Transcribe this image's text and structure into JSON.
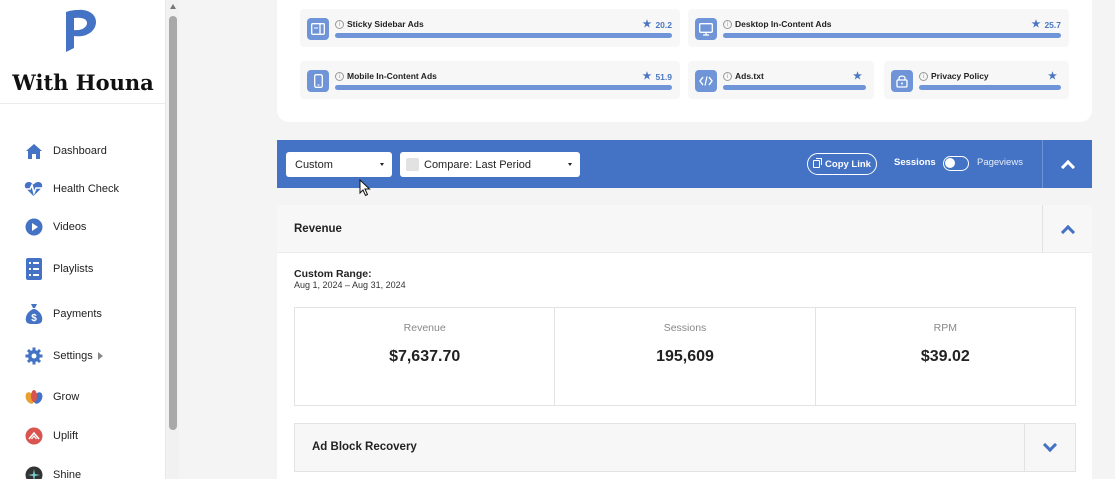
{
  "sidebar": {
    "brand": "With Houna",
    "items": [
      {
        "label": "Dashboard"
      },
      {
        "label": "Health Check"
      },
      {
        "label": "Videos"
      },
      {
        "label": "Playlists"
      },
      {
        "label": "Payments"
      },
      {
        "label": "Settings"
      },
      {
        "label": "Grow"
      },
      {
        "label": "Uplift"
      },
      {
        "label": "Shine"
      }
    ]
  },
  "ads": [
    {
      "name": "Sticky Sidebar Ads",
      "score": "20.2",
      "icon": "sidebar-layout-icon",
      "fill": 1.0
    },
    {
      "name": "Desktop In-Content Ads",
      "score": "25.7",
      "icon": "desktop-monitor-icon",
      "fill": 1.0
    },
    {
      "name": "Mobile In-Content Ads",
      "score": "51.9",
      "icon": "mobile-phone-icon",
      "fill": 1.0
    },
    {
      "name": "Ads.txt",
      "score": "",
      "icon": "code-icon",
      "fill": 1.0
    },
    {
      "name": "Privacy Policy",
      "score": "",
      "icon": "lock-icon",
      "fill": 1.0
    }
  ],
  "toolbar": {
    "range_select": "Custom",
    "compare_select": "Compare: Last Period",
    "copy_link": "Copy Link",
    "toggle_left": "Sessions",
    "toggle_right": "Pageviews"
  },
  "revenue": {
    "title": "Revenue",
    "range_label": "Custom Range:",
    "range_value": "Aug 1, 2024 – Aug 31, 2024",
    "metrics": [
      {
        "label": "Revenue",
        "value": "$7,637.70"
      },
      {
        "label": "Sessions",
        "value": "195,609"
      },
      {
        "label": "RPM",
        "value": "$39.02"
      }
    ],
    "ad_block": "Ad Block Recovery"
  },
  "colors": {
    "accent": "#4472c4",
    "icon_blue": "#6f95d8"
  }
}
